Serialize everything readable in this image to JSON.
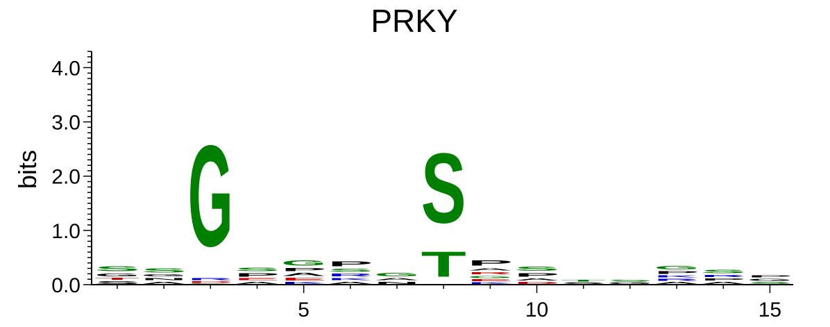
{
  "chart_data": {
    "type": "sequence-logo",
    "title": "PRKY",
    "ylabel": "bits",
    "xlabel": "",
    "ylim": [
      0,
      4.3
    ],
    "yticks": [
      {
        "value": 0,
        "label": "0.0"
      },
      {
        "value": 1,
        "label": "1.0"
      },
      {
        "value": 2,
        "label": "2.0"
      },
      {
        "value": 3,
        "label": "3.0"
      },
      {
        "value": 4,
        "label": "4.0"
      }
    ],
    "xlim": [
      0.45,
      15.5
    ],
    "xticks": [
      {
        "value": 5,
        "label": "5"
      },
      {
        "value": 10,
        "label": "10"
      },
      {
        "value": 15,
        "label": "15"
      }
    ],
    "colors": {
      "green": "#008000",
      "blue": "#0000cc",
      "red": "#cc0000",
      "black": "#000000",
      "purple": "#800080"
    },
    "positions": [
      {
        "pos": 1,
        "stack": [
          {
            "letter": "S",
            "bits": 0.08,
            "color": "#000000"
          },
          {
            "letter": "T",
            "bits": 0.06,
            "color": "#cc0000"
          },
          {
            "letter": "G",
            "bits": 0.08,
            "color": "#000000"
          },
          {
            "letter": "S",
            "bits": 0.14,
            "color": "#008000"
          }
        ]
      },
      {
        "pos": 2,
        "stack": [
          {
            "letter": "A",
            "bits": 0.07,
            "color": "#000000"
          },
          {
            "letter": "N",
            "bits": 0.07,
            "color": "#000000"
          },
          {
            "letter": "G",
            "bits": 0.06,
            "color": "#000000"
          },
          {
            "letter": "S",
            "bits": 0.12,
            "color": "#008000"
          }
        ]
      },
      {
        "pos": 3,
        "stack": [
          {
            "letter": "C",
            "bits": 0.02,
            "color": "#008000"
          },
          {
            "letter": "D",
            "bits": 0.05,
            "color": "#cc0000"
          },
          {
            "letter": "R",
            "bits": 0.06,
            "color": "#0000cc"
          },
          {
            "letter": "G",
            "bits": 2.98,
            "color": "#008000"
          }
        ]
      },
      {
        "pos": 4,
        "stack": [
          {
            "letter": "A",
            "bits": 0.07,
            "color": "#000000"
          },
          {
            "letter": "E",
            "bits": 0.06,
            "color": "#cc0000"
          },
          {
            "letter": "P",
            "bits": 0.1,
            "color": "#000000"
          },
          {
            "letter": "S",
            "bits": 0.1,
            "color": "#008000"
          }
        ]
      },
      {
        "pos": 5,
        "stack": [
          {
            "letter": "K",
            "bits": 0.06,
            "color": "#0000cc"
          },
          {
            "letter": "E",
            "bits": 0.08,
            "color": "#cc0000"
          },
          {
            "letter": "A",
            "bits": 0.09,
            "color": "#000000"
          },
          {
            "letter": "P",
            "bits": 0.09,
            "color": "#000000"
          },
          {
            "letter": "G",
            "bits": 0.16,
            "color": "#008000"
          }
        ]
      },
      {
        "pos": 6,
        "stack": [
          {
            "letter": "A",
            "bits": 0.07,
            "color": "#000000"
          },
          {
            "letter": "K",
            "bits": 0.07,
            "color": "#0000cc"
          },
          {
            "letter": "R",
            "bits": 0.08,
            "color": "#0000cc"
          },
          {
            "letter": "S",
            "bits": 0.09,
            "color": "#008000"
          },
          {
            "letter": "P",
            "bits": 0.14,
            "color": "#000000"
          }
        ]
      },
      {
        "pos": 7,
        "stack": [
          {
            "letter": "N",
            "bits": 0.07,
            "color": "#000000"
          },
          {
            "letter": "A",
            "bits": 0.06,
            "color": "#000000"
          },
          {
            "letter": "G",
            "bits": 0.11,
            "color": "#008000"
          }
        ]
      },
      {
        "pos": 8,
        "stack": [
          {
            "letter": "T",
            "bits": 0.74,
            "color": "#008000"
          },
          {
            "letter": "S",
            "bits": 2.06,
            "color": "#008000"
          }
        ]
      },
      {
        "pos": 9,
        "stack": [
          {
            "letter": "K",
            "bits": 0.05,
            "color": "#0000cc"
          },
          {
            "letter": "E",
            "bits": 0.06,
            "color": "#cc0000"
          },
          {
            "letter": "G",
            "bits": 0.07,
            "color": "#008000"
          },
          {
            "letter": "R",
            "bits": 0.07,
            "color": "#cc0000"
          },
          {
            "letter": "A",
            "bits": 0.07,
            "color": "#000000"
          },
          {
            "letter": "P",
            "bits": 0.16,
            "color": "#000000"
          }
        ]
      },
      {
        "pos": 10,
        "stack": [
          {
            "letter": "D",
            "bits": 0.06,
            "color": "#cc0000"
          },
          {
            "letter": "A",
            "bits": 0.07,
            "color": "#000000"
          },
          {
            "letter": "P",
            "bits": 0.1,
            "color": "#000000"
          },
          {
            "letter": "S",
            "bits": 0.12,
            "color": "#008000"
          }
        ]
      },
      {
        "pos": 11,
        "stack": [
          {
            "letter": "S",
            "bits": 0.05,
            "color": "#000000"
          },
          {
            "letter": "T",
            "bits": 0.05,
            "color": "#008000"
          }
        ]
      },
      {
        "pos": 12,
        "stack": [
          {
            "letter": "G",
            "bits": 0.05,
            "color": "#000000"
          },
          {
            "letter": "S",
            "bits": 0.05,
            "color": "#008000"
          }
        ]
      },
      {
        "pos": 13,
        "stack": [
          {
            "letter": "A",
            "bits": 0.06,
            "color": "#000000"
          },
          {
            "letter": "R",
            "bits": 0.06,
            "color": "#0000cc"
          },
          {
            "letter": "K",
            "bits": 0.06,
            "color": "#0000cc"
          },
          {
            "letter": "P",
            "bits": 0.08,
            "color": "#000000"
          },
          {
            "letter": "G",
            "bits": 0.1,
            "color": "#008000"
          }
        ]
      },
      {
        "pos": 14,
        "stack": [
          {
            "letter": "A",
            "bits": 0.06,
            "color": "#000000"
          },
          {
            "letter": "P",
            "bits": 0.07,
            "color": "#000000"
          },
          {
            "letter": "R",
            "bits": 0.06,
            "color": "#0000cc"
          },
          {
            "letter": "S",
            "bits": 0.1,
            "color": "#008000"
          }
        ]
      },
      {
        "pos": 15,
        "stack": [
          {
            "letter": "S",
            "bits": 0.06,
            "color": "#008000"
          },
          {
            "letter": "G",
            "bits": 0.06,
            "color": "#000000"
          },
          {
            "letter": "P",
            "bits": 0.07,
            "color": "#000000"
          }
        ]
      }
    ]
  }
}
